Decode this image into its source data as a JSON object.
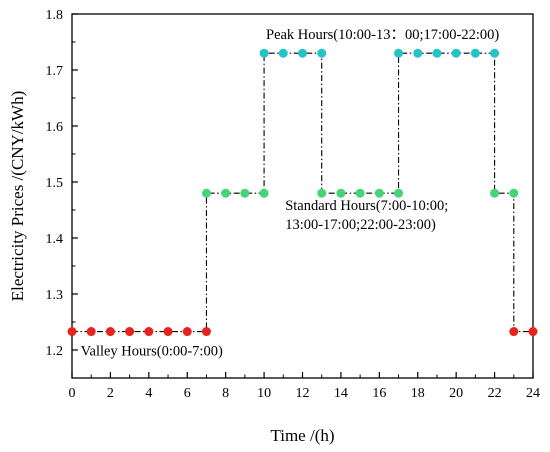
{
  "chart_data": {
    "type": "line",
    "title": "",
    "xlabel": "Time /(h)",
    "ylabel": "Electricity Prices /(CNY/kWh)",
    "xlim": [
      0,
      24
    ],
    "ylim": [
      1.15,
      1.8
    ],
    "x_ticks": [
      0,
      2,
      4,
      6,
      8,
      10,
      12,
      14,
      16,
      18,
      20,
      22,
      24
    ],
    "y_ticks": [
      1.2,
      1.3,
      1.4,
      1.5,
      1.6,
      1.7,
      1.8
    ],
    "y_tick_labels": [
      "1.2",
      "1.3",
      "1.4",
      "1.5",
      "1.6",
      "1.7",
      "1.8"
    ],
    "grid": false,
    "line_style": "dash-dot",
    "series": [
      {
        "x": [
          0,
          1,
          2,
          3,
          4,
          5,
          6,
          7,
          7,
          8,
          9,
          10,
          10,
          11,
          12,
          13,
          13,
          14,
          15,
          16,
          17,
          17,
          18,
          19,
          20,
          21,
          22,
          22,
          23,
          23,
          24
        ],
        "y": [
          1.233,
          1.233,
          1.233,
          1.233,
          1.233,
          1.233,
          1.233,
          1.233,
          1.48,
          1.48,
          1.48,
          1.48,
          1.73,
          1.73,
          1.73,
          1.73,
          1.48,
          1.48,
          1.48,
          1.48,
          1.48,
          1.73,
          1.73,
          1.73,
          1.73,
          1.73,
          1.73,
          1.48,
          1.48,
          1.233,
          1.233
        ],
        "tiers": [
          "valley",
          "valley",
          "valley",
          "valley",
          "valley",
          "valley",
          "valley",
          "valley",
          "standard",
          "standard",
          "standard",
          "standard",
          "peak",
          "peak",
          "peak",
          "peak",
          "standard",
          "standard",
          "standard",
          "standard",
          "standard",
          "peak",
          "peak",
          "peak",
          "peak",
          "peak",
          "peak",
          "standard",
          "standard",
          "valley",
          "valley"
        ]
      }
    ],
    "tier_colors": {
      "valley": "#e8231e",
      "standard": "#47d37a",
      "peak": "#22c4c4"
    },
    "annotations": [
      {
        "id": "peak",
        "lines": [
          "Peak Hours(10:00-13：00;17:00-22:00)"
        ],
        "x": 10.1,
        "y": 1.755
      },
      {
        "id": "standard",
        "lines": [
          "Standard Hours(7:00-10:00;",
          "13:00-17:00;22:00-23:00)"
        ],
        "x": 11.1,
        "y": 1.45
      },
      {
        "id": "valley",
        "lines": [
          "Valley Hours(0:00-7:00)"
        ],
        "x": 0.45,
        "y": 1.19
      }
    ]
  }
}
